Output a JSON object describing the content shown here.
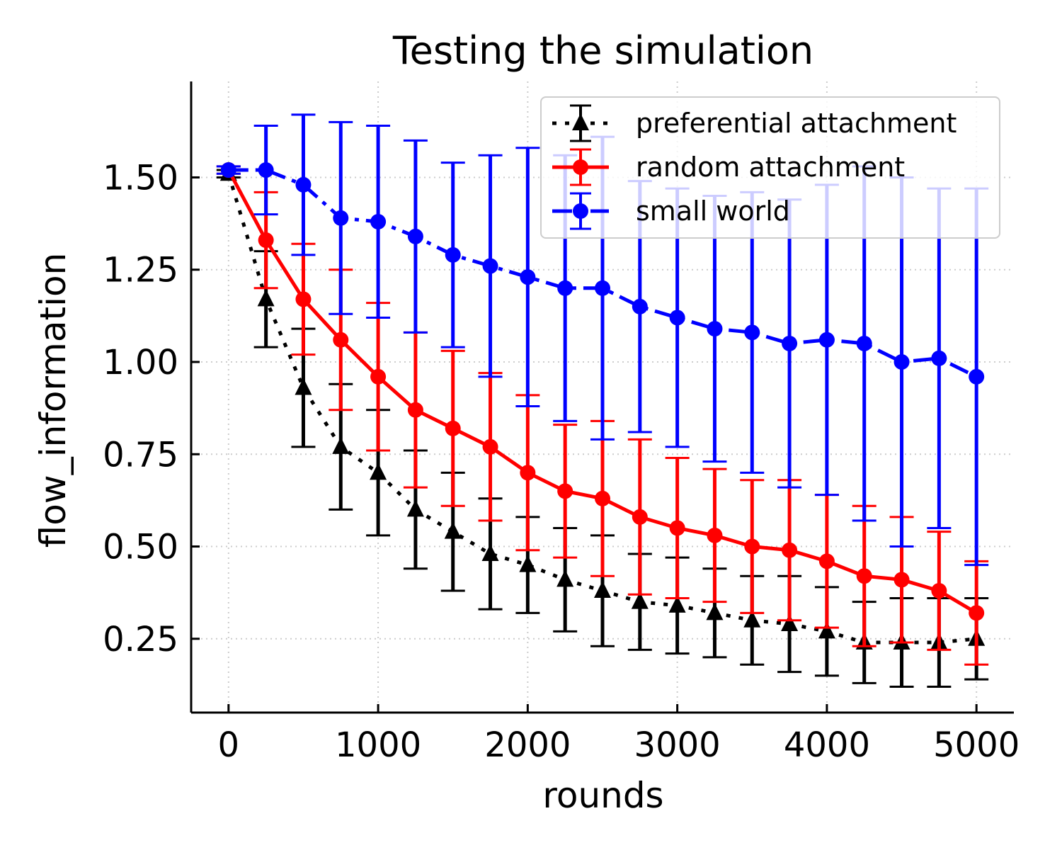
{
  "chart_data": {
    "type": "line",
    "title": "Testing the simulation",
    "xlabel": "rounds",
    "ylabel": "flow_information",
    "xlim": [
      -250,
      5250
    ],
    "ylim": [
      0.05,
      1.76
    ],
    "xticks": [
      0,
      1000,
      2000,
      3000,
      4000,
      5000
    ],
    "xtick_labels": [
      "0",
      "1000",
      "2000",
      "3000",
      "4000",
      "5000"
    ],
    "yticks": [
      0.25,
      0.5,
      0.75,
      1.0,
      1.25,
      1.5
    ],
    "ytick_labels": [
      "0.25",
      "0.50",
      "0.75",
      "1.00",
      "1.25",
      "1.50"
    ],
    "grid": true,
    "legend_position": "top-right",
    "x": [
      0,
      250,
      500,
      750,
      1000,
      1250,
      1500,
      1750,
      2000,
      2250,
      2500,
      2750,
      3000,
      3250,
      3500,
      3750,
      4000,
      4250,
      4500,
      4750,
      5000
    ],
    "series": [
      {
        "name": "preferential attachment",
        "color": "#000000",
        "marker": "triangle",
        "linestyle": "dotted",
        "values": [
          1.51,
          1.17,
          0.93,
          0.77,
          0.7,
          0.6,
          0.54,
          0.48,
          0.45,
          0.41,
          0.38,
          0.35,
          0.34,
          0.32,
          0.3,
          0.29,
          0.27,
          0.24,
          0.24,
          0.24,
          0.25
        ],
        "err": [
          0.01,
          0.13,
          0.16,
          0.17,
          0.17,
          0.16,
          0.16,
          0.15,
          0.13,
          0.14,
          0.15,
          0.13,
          0.13,
          0.12,
          0.12,
          0.13,
          0.12,
          0.11,
          0.12,
          0.12,
          0.11
        ]
      },
      {
        "name": "random attachment",
        "color": "#ff0000",
        "marker": "circle",
        "linestyle": "solid",
        "values": [
          1.52,
          1.33,
          1.17,
          1.06,
          0.96,
          0.87,
          0.82,
          0.77,
          0.7,
          0.65,
          0.63,
          0.58,
          0.55,
          0.53,
          0.5,
          0.49,
          0.46,
          0.42,
          0.41,
          0.38,
          0.32
        ],
        "err": [
          0.01,
          0.13,
          0.15,
          0.19,
          0.2,
          0.21,
          0.21,
          0.2,
          0.21,
          0.18,
          0.21,
          0.21,
          0.19,
          0.18,
          0.18,
          0.19,
          0.18,
          0.19,
          0.17,
          0.16,
          0.14
        ]
      },
      {
        "name": "small world",
        "color": "#0000ff",
        "marker": "circle",
        "linestyle": "dashdot",
        "values": [
          1.52,
          1.52,
          1.48,
          1.39,
          1.38,
          1.34,
          1.29,
          1.26,
          1.23,
          1.2,
          1.2,
          1.15,
          1.12,
          1.09,
          1.08,
          1.05,
          1.06,
          1.05,
          1.0,
          1.01,
          0.96
        ],
        "err": [
          0.01,
          0.12,
          0.19,
          0.26,
          0.26,
          0.26,
          0.25,
          0.3,
          0.35,
          0.36,
          0.41,
          0.34,
          0.35,
          0.36,
          0.38,
          0.39,
          0.42,
          0.48,
          0.5,
          0.46,
          0.51
        ]
      }
    ]
  }
}
